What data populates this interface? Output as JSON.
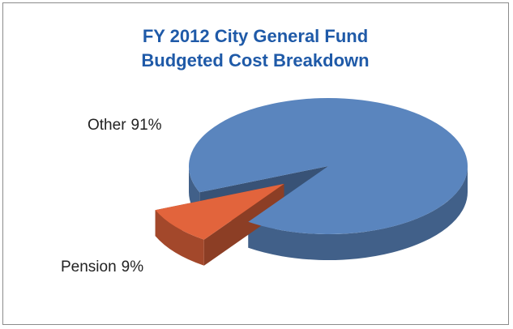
{
  "chart_data": {
    "type": "pie3d",
    "title": "FY 2012 City General Fund Budgeted Cost Breakdown",
    "categories": [
      "Other",
      "Pension"
    ],
    "values": [
      91,
      9
    ],
    "value_labels": [
      "91%",
      "9%"
    ],
    "colors": [
      "#5a85be",
      "#e2643c"
    ],
    "explode": [
      false,
      true
    ]
  }
}
